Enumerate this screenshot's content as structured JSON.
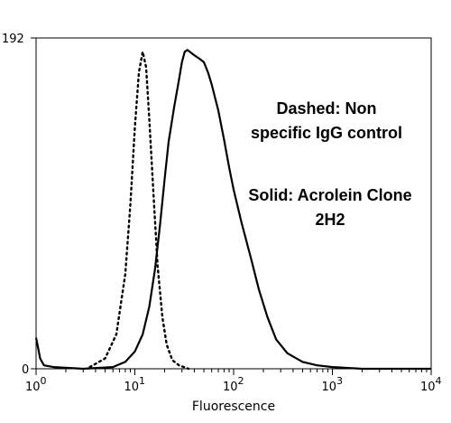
{
  "chart_data": {
    "type": "line",
    "xlabel": "Fluorescence",
    "ylabel": "",
    "xscale": "log",
    "xlim": [
      1,
      10000
    ],
    "ylim": [
      0,
      192
    ],
    "y_ticks": [
      "192",
      "0"
    ],
    "x_ticks": [
      {
        "base": "10",
        "exp": "0"
      },
      {
        "base": "10",
        "exp": "1"
      },
      {
        "base": "10",
        "exp": "2"
      },
      {
        "base": "10",
        "exp": "3"
      },
      {
        "base": "10",
        "exp": "4"
      }
    ],
    "annotations": [
      [
        "Dashed: Non",
        "specific IgG control"
      ],
      [
        "Solid: Acrolein Clone",
        "2H2"
      ]
    ],
    "series": [
      {
        "style": "dotted",
        "x": [
          3.5,
          5,
          6.5,
          8,
          9,
          10,
          11,
          12,
          13,
          14,
          15.5,
          17,
          19,
          21,
          24,
          28,
          35
        ],
        "y": [
          1,
          6,
          20,
          55,
          95,
          140,
          172,
          184,
          175,
          145,
          100,
          60,
          30,
          14,
          5,
          2,
          0
        ]
      },
      {
        "style": "solid",
        "x": [
          1,
          1.05,
          1.1,
          1.2,
          1.5,
          3,
          6,
          8,
          10,
          12,
          14,
          16,
          18,
          20,
          22,
          25,
          28,
          30,
          32,
          34,
          36,
          40,
          45,
          50,
          55,
          60,
          70,
          80,
          90,
          100,
          120,
          150,
          180,
          220,
          270,
          350,
          500,
          700,
          1000,
          2000,
          4000,
          10000
        ],
        "y": [
          18,
          12,
          6,
          2,
          1,
          0,
          1,
          4,
          10,
          20,
          36,
          58,
          84,
          110,
          132,
          152,
          168,
          178,
          184,
          185,
          184,
          182,
          180,
          178,
          172,
          165,
          150,
          133,
          117,
          104,
          85,
          64,
          46,
          30,
          17,
          9,
          4,
          2,
          1,
          0,
          0,
          0
        ]
      }
    ]
  }
}
